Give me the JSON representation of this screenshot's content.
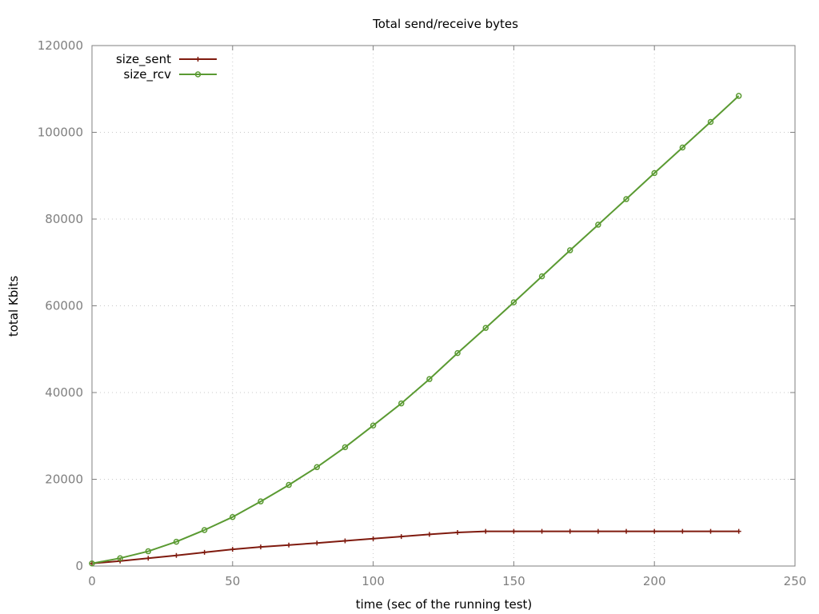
{
  "chart_data": {
    "type": "line",
    "title": "Total send/receive bytes",
    "xlabel": "time (sec of the running test)",
    "ylabel": "total Kbits",
    "xlim": [
      0,
      250
    ],
    "ylim": [
      0,
      120000
    ],
    "x_ticks": [
      0,
      50,
      100,
      150,
      200,
      250
    ],
    "y_ticks": [
      0,
      20000,
      40000,
      60000,
      80000,
      100000,
      120000
    ],
    "grid": true,
    "legend_position": "top-left",
    "x": [
      0,
      10,
      20,
      30,
      40,
      50,
      60,
      70,
      80,
      90,
      100,
      110,
      120,
      130,
      140,
      150,
      160,
      170,
      180,
      190,
      200,
      210,
      220,
      230
    ],
    "series": [
      {
        "name": "size_sent",
        "color": "#7f1a0e",
        "marker": "plus",
        "values": [
          600,
          1150,
          1800,
          2450,
          3150,
          3850,
          4400,
          4850,
          5300,
          5800,
          6300,
          6800,
          7300,
          7750,
          8000,
          8000,
          8000,
          8000,
          8000,
          8000,
          8000,
          8000,
          8000,
          8000
        ]
      },
      {
        "name": "size_rcv",
        "color": "#5a9a32",
        "marker": "circle",
        "values": [
          600,
          1800,
          3400,
          5600,
          8300,
          11300,
          14900,
          18700,
          22800,
          27400,
          32400,
          37500,
          43100,
          49100,
          54900,
          60800,
          66800,
          72800,
          78700,
          84600,
          90600,
          96500,
          102400,
          108400
        ]
      }
    ]
  }
}
